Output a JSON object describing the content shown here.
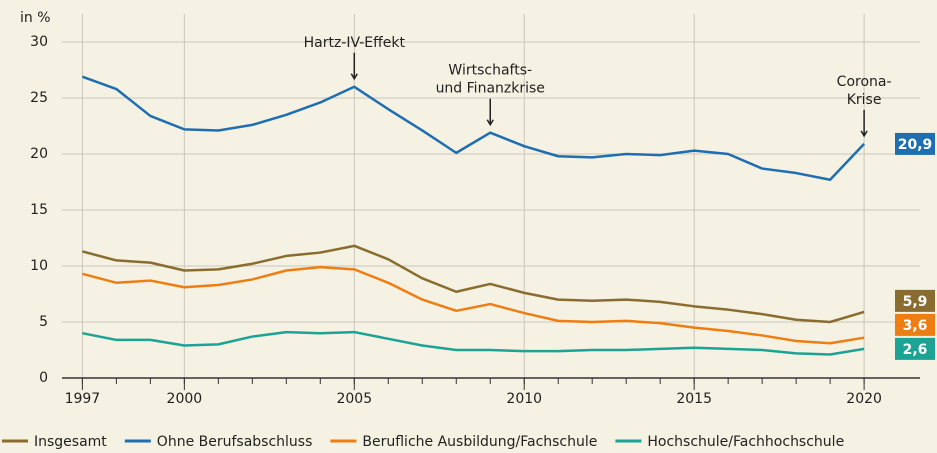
{
  "chart_data": {
    "type": "line",
    "y_label": "in %",
    "x": [
      1997,
      1998,
      1999,
      2000,
      2001,
      2002,
      2003,
      2004,
      2005,
      2006,
      2007,
      2008,
      2009,
      2010,
      2011,
      2012,
      2013,
      2014,
      2015,
      2016,
      2017,
      2018,
      2019,
      2020
    ],
    "series": [
      {
        "name": "Insgesamt",
        "color": "#8a6d2e",
        "values": [
          11.3,
          10.5,
          10.3,
          9.6,
          9.7,
          10.2,
          10.9,
          11.2,
          11.8,
          10.6,
          8.9,
          7.7,
          8.4,
          7.6,
          7.0,
          6.9,
          7.0,
          6.8,
          6.4,
          6.1,
          5.7,
          5.2,
          5.0,
          5.9
        ],
        "value_labels": [
          null,
          null,
          null,
          null,
          null,
          null,
          null,
          null,
          null,
          null,
          null,
          null,
          null,
          null,
          null,
          null,
          null,
          null,
          null,
          null,
          null,
          null,
          null,
          "5,9"
        ]
      },
      {
        "name": "Ohne Berufsabschluss",
        "color": "#1f6eb1",
        "values": [
          26.9,
          25.8,
          23.4,
          22.2,
          22.1,
          22.6,
          23.5,
          24.6,
          26.0,
          24.0,
          22.1,
          20.1,
          21.9,
          20.7,
          19.8,
          19.7,
          20.0,
          19.9,
          20.3,
          20.0,
          18.7,
          18.3,
          17.7,
          20.9
        ],
        "value_labels": [
          null,
          null,
          null,
          null,
          null,
          null,
          null,
          null,
          null,
          null,
          null,
          null,
          null,
          null,
          null,
          null,
          null,
          null,
          null,
          null,
          null,
          null,
          null,
          "20,9"
        ]
      },
      {
        "name": "Berufliche Ausbildung/Fachschule",
        "color": "#ee7d12",
        "values": [
          9.3,
          8.5,
          8.7,
          8.1,
          8.3,
          8.8,
          9.6,
          9.9,
          9.7,
          8.5,
          7.0,
          6.0,
          6.6,
          5.8,
          5.1,
          5.0,
          5.1,
          4.9,
          4.5,
          4.2,
          3.8,
          3.3,
          3.1,
          3.6
        ],
        "value_labels": [
          null,
          null,
          null,
          null,
          null,
          null,
          null,
          null,
          null,
          null,
          null,
          null,
          null,
          null,
          null,
          null,
          null,
          null,
          null,
          null,
          null,
          null,
          null,
          "3,6"
        ]
      },
      {
        "name": "Hochschule/Fachhochschule",
        "color": "#1ba395",
        "values": [
          4.0,
          3.4,
          3.4,
          2.9,
          3.0,
          3.7,
          4.1,
          4.0,
          4.1,
          3.5,
          2.9,
          2.5,
          2.5,
          2.4,
          2.4,
          2.5,
          2.5,
          2.6,
          2.7,
          2.6,
          2.5,
          2.2,
          2.1,
          2.6
        ],
        "value_labels": [
          null,
          null,
          null,
          null,
          null,
          null,
          null,
          null,
          null,
          null,
          null,
          null,
          null,
          null,
          null,
          null,
          null,
          null,
          null,
          null,
          null,
          null,
          null,
          "2,6"
        ]
      }
    ],
    "annotations": [
      {
        "text": [
          "Hartz-IV-Effekt"
        ],
        "x": 2005,
        "series": 1
      },
      {
        "text": [
          "Wirtschafts-",
          "und Finanzkrise"
        ],
        "x": 2009,
        "series": 1
      },
      {
        "text": [
          "Corona-",
          "Krise"
        ],
        "x": 2020,
        "series": 1
      }
    ],
    "xlim": [
      1996.4,
      2020.85
    ],
    "xticks": [
      1997,
      2000,
      2005,
      2010,
      2015,
      2020
    ],
    "ylim": [
      0,
      30
    ],
    "yticks": [
      0,
      5,
      10,
      15,
      20,
      25,
      30
    ],
    "grid": true,
    "legend": "bottom"
  }
}
